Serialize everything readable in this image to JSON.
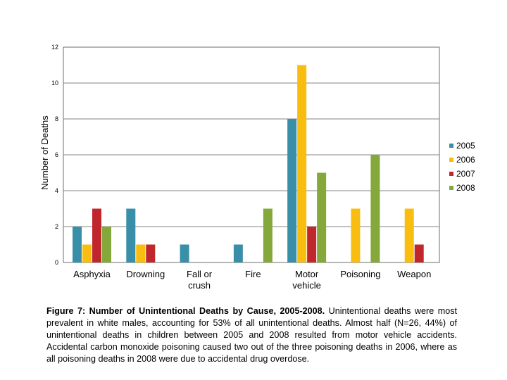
{
  "chart_data": {
    "type": "bar",
    "categories": [
      "Asphyxia",
      "Drowning",
      "Fall or crush",
      "Fire",
      "Motor vehicle",
      "Poisoning",
      "Weapon"
    ],
    "category_lines": [
      [
        "Asphyxia"
      ],
      [
        "Drowning"
      ],
      [
        "Fall or",
        "crush"
      ],
      [
        "Fire"
      ],
      [
        "Motor",
        "vehicle"
      ],
      [
        "Poisoning"
      ],
      [
        "Weapon"
      ]
    ],
    "series": [
      {
        "name": "2005",
        "color": "#3a8fa8",
        "values": [
          2,
          3,
          1,
          1,
          8,
          0,
          0
        ]
      },
      {
        "name": "2006",
        "color": "#f9bd0f",
        "values": [
          1,
          1,
          0,
          0,
          11,
          3,
          3
        ]
      },
      {
        "name": "2007",
        "color": "#c0272d",
        "values": [
          3,
          1,
          0,
          0,
          2,
          0,
          1
        ]
      },
      {
        "name": "2008",
        "color": "#85a83a",
        "values": [
          2,
          0,
          0,
          3,
          5,
          6,
          0
        ]
      }
    ],
    "ylabel": "Number of Deaths",
    "xlabel": "",
    "ylim": [
      0,
      12
    ],
    "yticks": [
      "0",
      "2",
      "4",
      "6",
      "8",
      "10",
      "12"
    ],
    "grid": true,
    "legend_position": "right"
  },
  "caption": {
    "title": "Figure 7: Number of Unintentional Deaths by Cause, 2005-2008.",
    "text": "Unintentional deaths were most prevalent in white males, accounting for 53% of all unintentional deaths. Almost half (N=26, 44%) of unintentional deaths in children between 2005 and 2008 resulted from motor vehicle accidents. Accidental carbon monoxide poisoning caused two out of the three poisoning deaths in 2006, where as all poisoning deaths in 2008 were due to accidental drug overdose."
  }
}
